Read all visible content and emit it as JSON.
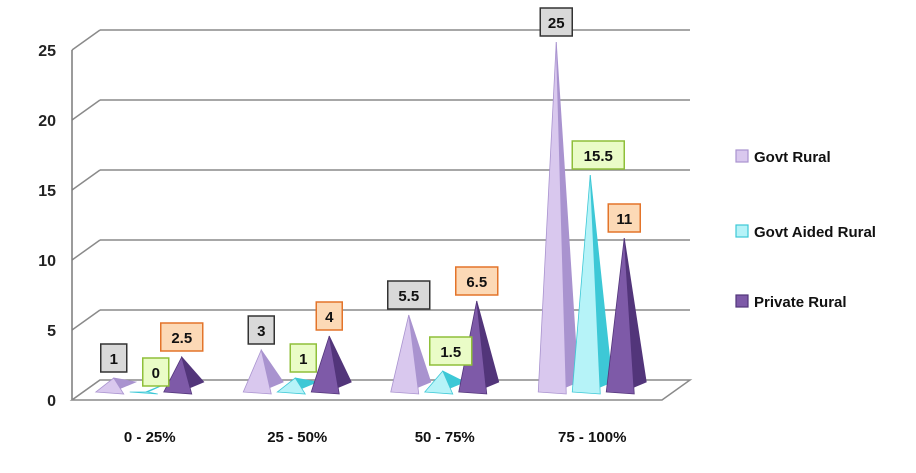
{
  "chart_data": {
    "type": "bar",
    "style": "3d-pyramid",
    "categories": [
      "0 - 25%",
      "25 - 50%",
      "50 - 75%",
      "75 - 100%"
    ],
    "series": [
      {
        "name": "Govt Rural",
        "values": [
          1,
          3,
          5.5,
          25
        ],
        "labels": [
          "1",
          "3",
          "5.5",
          "25"
        ],
        "color": "#d9c8ee",
        "side_color": "#a993cf",
        "label_bg": "#d9d9d9",
        "label_border": "#333333"
      },
      {
        "name": "Govt Aided Rural",
        "values": [
          0,
          1,
          1.5,
          15.5
        ],
        "labels": [
          "0",
          "1",
          "1.5",
          "15.5"
        ],
        "color": "#b6f3f8",
        "side_color": "#3dc8d6",
        "label_bg": "#eafcc7",
        "label_border": "#8fbf3a"
      },
      {
        "name": "Private Rural",
        "values": [
          2.5,
          4,
          6.5,
          11
        ],
        "labels": [
          "2.5",
          "4",
          "6.5",
          "11"
        ],
        "color": "#7e5aa8",
        "side_color": "#52357a",
        "label_bg": "#fcd9b6",
        "label_border": "#e3742a"
      }
    ],
    "yticks": [
      "0",
      "5",
      "10",
      "15",
      "20",
      "25"
    ],
    "ylim": [
      0,
      25
    ],
    "grid": true,
    "legend_position": "right",
    "title": "",
    "xlabel": "",
    "ylabel": ""
  }
}
